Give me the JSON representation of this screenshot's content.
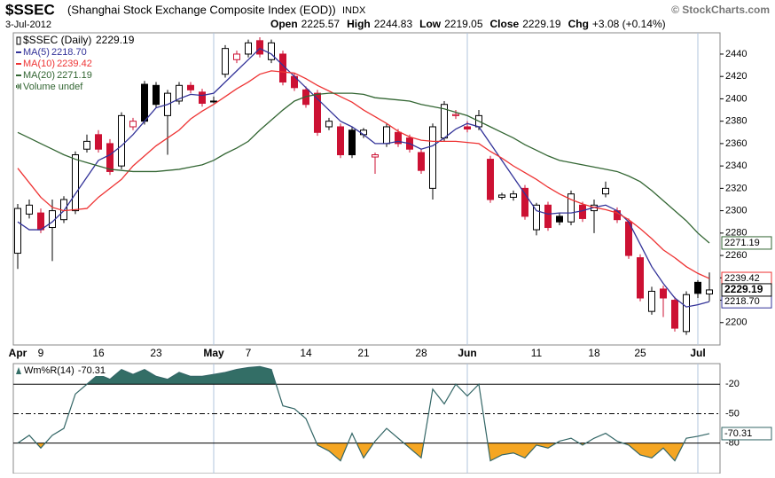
{
  "chart_data": {
    "type": "candlestick",
    "title_symbol": "$SSEC",
    "title": "(Shanghai Stock Exchange Composite Index (EOD))",
    "exchange": "INDX",
    "source": "© StockCharts.com",
    "date": "3-Jul-2012",
    "quote": [
      {
        "label": "Open",
        "value": "2225.57"
      },
      {
        "label": "High",
        "value": "2244.83"
      },
      {
        "label": "Low",
        "value": "2219.05"
      },
      {
        "label": "Close",
        "value": "2229.19"
      },
      {
        "label": "Chg",
        "value": "+3.08 (+0.14%)"
      }
    ],
    "symbol_label": "$SSEC (Daily)",
    "close_label": "2229.19",
    "volume_label": "Volume undef",
    "categories": [
      "Apr",
      null,
      "9",
      null,
      null,
      null,
      null,
      "16",
      null,
      null,
      null,
      null,
      "23",
      null,
      null,
      null,
      null,
      "May",
      null,
      null,
      "7",
      null,
      null,
      null,
      null,
      "14",
      null,
      null,
      null,
      null,
      "21",
      null,
      null,
      null,
      null,
      "28",
      null,
      null,
      null,
      "Jun",
      null,
      null,
      null,
      null,
      null,
      "11",
      null,
      null,
      null,
      null,
      "18",
      null,
      null,
      null,
      "25",
      null,
      null,
      null,
      null,
      "Jul",
      null
    ],
    "open": [
      2262,
      2297,
      2298,
      2285,
      2292,
      2300,
      2355,
      2368,
      2360,
      2340,
      2375,
      2413,
      2412,
      2385,
      2398,
      2412,
      2406,
      2398,
      2422,
      2435,
      2440,
      2452,
      2435,
      2440,
      2420,
      2408,
      2405,
      2375,
      2375,
      2372,
      2368,
      2348,
      2360,
      2370,
      2365,
      2352,
      2320,
      2365,
      2385,
      2375,
      2375,
      2346,
      2312,
      2312,
      2320,
      2283,
      2305,
      2295,
      2290,
      2305,
      2300,
      2315,
      2300,
      2290,
      2258,
      2210,
      2230,
      2220,
      2192,
      2236,
      2225.57
    ],
    "high": [
      2306,
      2310,
      2302,
      2310,
      2313,
      2353,
      2368,
      2372,
      2364,
      2388,
      2383,
      2416,
      2415,
      2408,
      2415,
      2415,
      2409,
      2402,
      2448,
      2443,
      2453,
      2455,
      2453,
      2443,
      2423,
      2411,
      2408,
      2383,
      2378,
      2375,
      2374,
      2352,
      2378,
      2373,
      2368,
      2355,
      2378,
      2398,
      2390,
      2380,
      2390,
      2349,
      2316,
      2318,
      2323,
      2307,
      2308,
      2298,
      2318,
      2308,
      2310,
      2326,
      2303,
      2293,
      2261,
      2232,
      2233,
      2223,
      2228,
      2238,
      2244.83
    ],
    "low": [
      2248,
      2293,
      2280,
      2255,
      2289,
      2297,
      2352,
      2352,
      2332,
      2337,
      2372,
      2377,
      2392,
      2350,
      2395,
      2405,
      2393,
      2396,
      2419,
      2432,
      2437,
      2437,
      2432,
      2412,
      2407,
      2392,
      2367,
      2372,
      2347,
      2347,
      2365,
      2333,
      2357,
      2357,
      2352,
      2333,
      2310,
      2362,
      2382,
      2370,
      2372,
      2307,
      2310,
      2309,
      2292,
      2278,
      2282,
      2287,
      2287,
      2290,
      2280,
      2312,
      2289,
      2257,
      2219,
      2207,
      2205,
      2192,
      2189,
      2222,
      2219.05
    ],
    "close": [
      2302,
      2305,
      2283,
      2300,
      2310,
      2350,
      2362,
      2355,
      2335,
      2385,
      2380,
      2380,
      2395,
      2405,
      2412,
      2408,
      2396,
      2398,
      2445,
      2440,
      2450,
      2440,
      2450,
      2415,
      2410,
      2395,
      2370,
      2380,
      2350,
      2350,
      2372,
      2350,
      2375,
      2360,
      2355,
      2336,
      2375,
      2395,
      2386,
      2373,
      2385,
      2310,
      2314,
      2315,
      2295,
      2305,
      2285,
      2290,
      2315,
      2293,
      2305,
      2320,
      2292,
      2260,
      2222,
      2228,
      2222,
      2195,
      2225,
      2226.11,
      2229.19
    ],
    "up_color": "#000000",
    "down_color": "#cc1133",
    "series": [
      {
        "name": "MA(5)",
        "last_label": "2218.70",
        "color": "#333399",
        "values": [
          2290,
          2283,
          2283,
          2290,
          2300,
          2315,
          2330,
          2345,
          2350,
          2358,
          2368,
          2380,
          2392,
          2395,
          2400,
          2404,
          2403,
          2405,
          2415,
          2425,
          2435,
          2445,
          2440,
          2430,
          2420,
          2410,
          2400,
          2390,
          2380,
          2375,
          2368,
          2360,
          2360,
          2362,
          2360,
          2355,
          2358,
          2365,
          2373,
          2378,
          2375,
          2360,
          2345,
          2330,
          2315,
          2300,
          2297,
          2298,
          2298,
          2300,
          2303,
          2305,
          2300,
          2290,
          2270,
          2250,
          2235,
          2222,
          2214,
          2216,
          2218.7
        ]
      },
      {
        "name": "MA(10)",
        "last_label": "2239.42",
        "color": "#ee3333",
        "values": [
          2338,
          2325,
          2312,
          2303,
          2300,
          2301,
          2302,
          2312,
          2320,
          2328,
          2340,
          2349,
          2358,
          2365,
          2372,
          2382,
          2389,
          2395,
          2402,
          2409,
          2415,
          2422,
          2425,
          2424,
          2423,
          2418,
          2412,
          2407,
          2402,
          2397,
          2390,
          2384,
          2378,
          2371,
          2366,
          2363,
          2362,
          2362,
          2362,
          2361,
          2360,
          2353,
          2347,
          2340,
          2334,
          2328,
          2321,
          2315,
          2310,
          2306,
          2303,
          2301,
          2298,
          2292,
          2284,
          2275,
          2265,
          2258,
          2250,
          2244,
          2239.42
        ]
      },
      {
        "name": "MA(20)",
        "last_label": "2271.19",
        "color": "#336633",
        "values": [
          2370,
          2365,
          2360,
          2355,
          2350,
          2346,
          2343,
          2340,
          2337,
          2336,
          2335,
          2335,
          2335,
          2336,
          2337,
          2339,
          2341,
          2345,
          2351,
          2356,
          2362,
          2372,
          2381,
          2390,
          2398,
          2402,
          2404,
          2405,
          2405,
          2405,
          2404,
          2401,
          2400,
          2399,
          2398,
          2395,
          2393,
          2391,
          2388,
          2385,
          2380,
          2375,
          2370,
          2365,
          2359,
          2354,
          2349,
          2345,
          2343,
          2341,
          2339,
          2337,
          2335,
          2331,
          2326,
          2318,
          2309,
          2300,
          2291,
          2280,
          2271.19
        ]
      }
    ],
    "ylim": [
      2180,
      2459
    ],
    "yticks": [
      2200,
      2220,
      2240,
      2260,
      2280,
      2300,
      2320,
      2340,
      2360,
      2380,
      2400,
      2420,
      2440
    ],
    "grid": false,
    "indicator": {
      "type": "line",
      "name": "Wm%R(14)",
      "last_label": "-70.31",
      "color": "#336666",
      "high_fill": "#336e66",
      "low_fill": "#f5a623",
      "values": [
        -80,
        -72,
        -85,
        -72,
        -65,
        -30,
        -20,
        -10,
        -15,
        -5,
        -10,
        -5,
        -12,
        -15,
        -8,
        -12,
        -12,
        -10,
        -8,
        -5,
        -3,
        -2,
        -5,
        -42,
        -45,
        -55,
        -82,
        -88,
        -98,
        -70,
        -95,
        -78,
        -65,
        -75,
        -85,
        -95,
        -25,
        -40,
        -20,
        -32,
        -20,
        -98,
        -92,
        -90,
        -95,
        -82,
        -85,
        -78,
        -75,
        -82,
        -75,
        -70,
        -78,
        -82,
        -92,
        -95,
        -85,
        -98,
        -75,
        -73,
        -70.31
      ],
      "ylim": [
        -111,
        1
      ],
      "yticks": [
        -20,
        -50,
        -80
      ]
    }
  }
}
